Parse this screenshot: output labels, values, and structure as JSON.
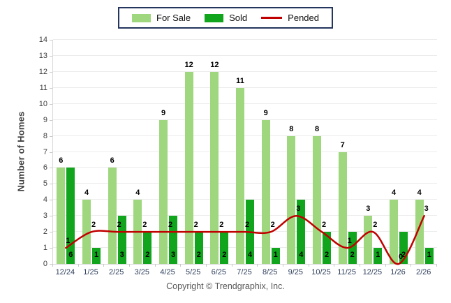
{
  "legend": {
    "border_color": "#24355E"
  },
  "footer": {
    "copyright": "Copyright © Trendgraphix, Inc."
  },
  "colors": {
    "for_sale": "#9FD77F",
    "sold": "#10A51D",
    "pended": "#C00000",
    "grid": "#ECECEC",
    "axis": "#D9D9D9",
    "tick_mark": "#C9C9C9",
    "y_tick_label": "#404040",
    "x_tick_label": "#31415E",
    "value_label": "#000000",
    "y_title": "#404040",
    "copyright": "#595959",
    "background": "#FFFFFF"
  },
  "chart_data": {
    "type": "bar",
    "categories": [
      "12/24",
      "1/25",
      "2/25",
      "3/25",
      "4/25",
      "5/25",
      "6/25",
      "7/25",
      "8/25",
      "9/25",
      "10/25",
      "11/25",
      "12/25",
      "1/26",
      "2/26"
    ],
    "series": [
      {
        "name": "For Sale",
        "type": "bar",
        "color": "#9FD77F",
        "values": [
          6,
          4,
          6,
          4,
          9,
          12,
          12,
          11,
          9,
          8,
          8,
          7,
          3,
          4,
          4
        ]
      },
      {
        "name": "Sold",
        "type": "bar",
        "color": "#10A51D",
        "values": [
          6,
          1,
          3,
          2,
          3,
          2,
          2,
          4,
          1,
          4,
          2,
          2,
          1,
          2,
          1
        ]
      },
      {
        "name": "Pended",
        "type": "line",
        "color": "#C00000",
        "values": [
          1,
          2,
          2,
          2,
          2,
          2,
          2,
          2,
          2,
          3,
          2,
          1,
          2,
          0,
          3
        ]
      }
    ],
    "title": "",
    "xlabel": "",
    "ylabel": "Number of Homes",
    "ylim": [
      0,
      14
    ],
    "y_step": 1,
    "grid": true,
    "legend_position": "top-center",
    "value_labels": true
  }
}
